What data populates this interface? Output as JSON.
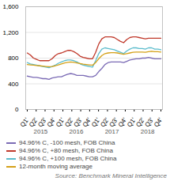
{
  "chart_data": {
    "type": "line",
    "title": "",
    "x": [
      0,
      1,
      2,
      3,
      4,
      5,
      6,
      7,
      8,
      9,
      10,
      11,
      12,
      13,
      14,
      15,
      16,
      17,
      18,
      19,
      20,
      21,
      22,
      23,
      24,
      25,
      26,
      27,
      28,
      29,
      30,
      31,
      32,
      33,
      34,
      35,
      36,
      37,
      38,
      39,
      40,
      41,
      42,
      43
    ],
    "xlim": [
      -0.5,
      43.5
    ],
    "xticks": [
      {
        "value": 0,
        "label": "Q1'"
      },
      {
        "value": 2.8666666666666667,
        "label": "Q2'"
      },
      {
        "value": 5.733333333333333,
        "label": "Q3'"
      },
      {
        "value": 8.6,
        "label": "Q4'"
      },
      {
        "value": 11.466666666666667,
        "label": "Q1'"
      },
      {
        "value": 14.333333333333334,
        "label": "Q2'"
      },
      {
        "value": 17.2,
        "label": "Q3'"
      },
      {
        "value": 20.066666666666666,
        "label": "Q4'"
      },
      {
        "value": 22.933333333333334,
        "label": "Q1'"
      },
      {
        "value": 25.8,
        "label": "Q2'"
      },
      {
        "value": 28.666666666666668,
        "label": "Q3'"
      },
      {
        "value": 31.533333333333335,
        "label": "Q4'"
      },
      {
        "value": 34.4,
        "label": "Q1'"
      },
      {
        "value": 37.266666666666666,
        "label": "Q2'"
      },
      {
        "value": 40.13333333333333,
        "label": "Q3'"
      },
      {
        "value": 43,
        "label": "Q4'"
      }
    ],
    "ylim": [
      0,
      1600
    ],
    "yticks": [
      0,
      400,
      800,
      {
        "value": 1200,
        "label": "1,200"
      },
      {
        "value": 1600,
        "label": "1,600"
      }
    ],
    "grid": true,
    "legend": "bottom",
    "annotations": [
      {
        "text": "2015",
        "x": 4.3
      },
      {
        "text": "2016",
        "x": 15.766666666666667
      },
      {
        "text": "2017",
        "x": 27.233333333333334
      },
      {
        "text": "2018",
        "x": 38.7
      },
      {
        "text": "Source: Benchmark Mineral Intelligence"
      }
    ],
    "series": [
      {
        "name": "94.96% C, -100 mesh, FOB China",
        "color": "#7b6bb5",
        "values": [
          520,
          510,
          500,
          500,
          490,
          480,
          480,
          470,
          490,
          500,
          510,
          510,
          530,
          550,
          560,
          550,
          530,
          530,
          530,
          520,
          510,
          510,
          530,
          590,
          640,
          700,
          730,
          740,
          740,
          740,
          740,
          730,
          750,
          770,
          780,
          790,
          790,
          800,
          800,
          810,
          800,
          790,
          790,
          790
        ]
      },
      {
        "name": "94.96% C, +80 mesh, FOB China",
        "color": "#c0392b",
        "values": [
          880,
          850,
          800,
          780,
          760,
          760,
          760,
          760,
          790,
          840,
          870,
          880,
          900,
          920,
          920,
          900,
          870,
          830,
          810,
          800,
          790,
          790,
          890,
          1020,
          1100,
          1130,
          1130,
          1130,
          1120,
          1090,
          1060,
          1040,
          1090,
          1120,
          1130,
          1130,
          1120,
          1110,
          1100,
          1110,
          1110,
          1110,
          1110,
          1110
        ]
      },
      {
        "name": "94.96% C, +100 mesh, FOB China",
        "color": "#5bbccc",
        "values": [
          730,
          710,
          700,
          690,
          680,
          670,
          660,
          650,
          670,
          690,
          720,
          740,
          760,
          770,
          770,
          760,
          740,
          710,
          690,
          680,
          670,
          660,
          760,
          870,
          940,
          960,
          950,
          940,
          930,
          910,
          890,
          870,
          910,
          940,
          960,
          960,
          950,
          950,
          940,
          960,
          960,
          940,
          940,
          930
        ]
      },
      {
        "name": "12-month moving average",
        "color": "#d4a017",
        "values": [
          700,
          695,
          690,
          685,
          680,
          675,
          670,
          665,
          670,
          680,
          695,
          710,
          725,
          735,
          740,
          735,
          725,
          715,
          705,
          700,
          695,
          690,
          730,
          790,
          840,
          870,
          880,
          885,
          885,
          880,
          870,
          860,
          870,
          880,
          890,
          895,
          895,
          895,
          890,
          900,
          905,
          900,
          900,
          895
        ]
      }
    ]
  }
}
